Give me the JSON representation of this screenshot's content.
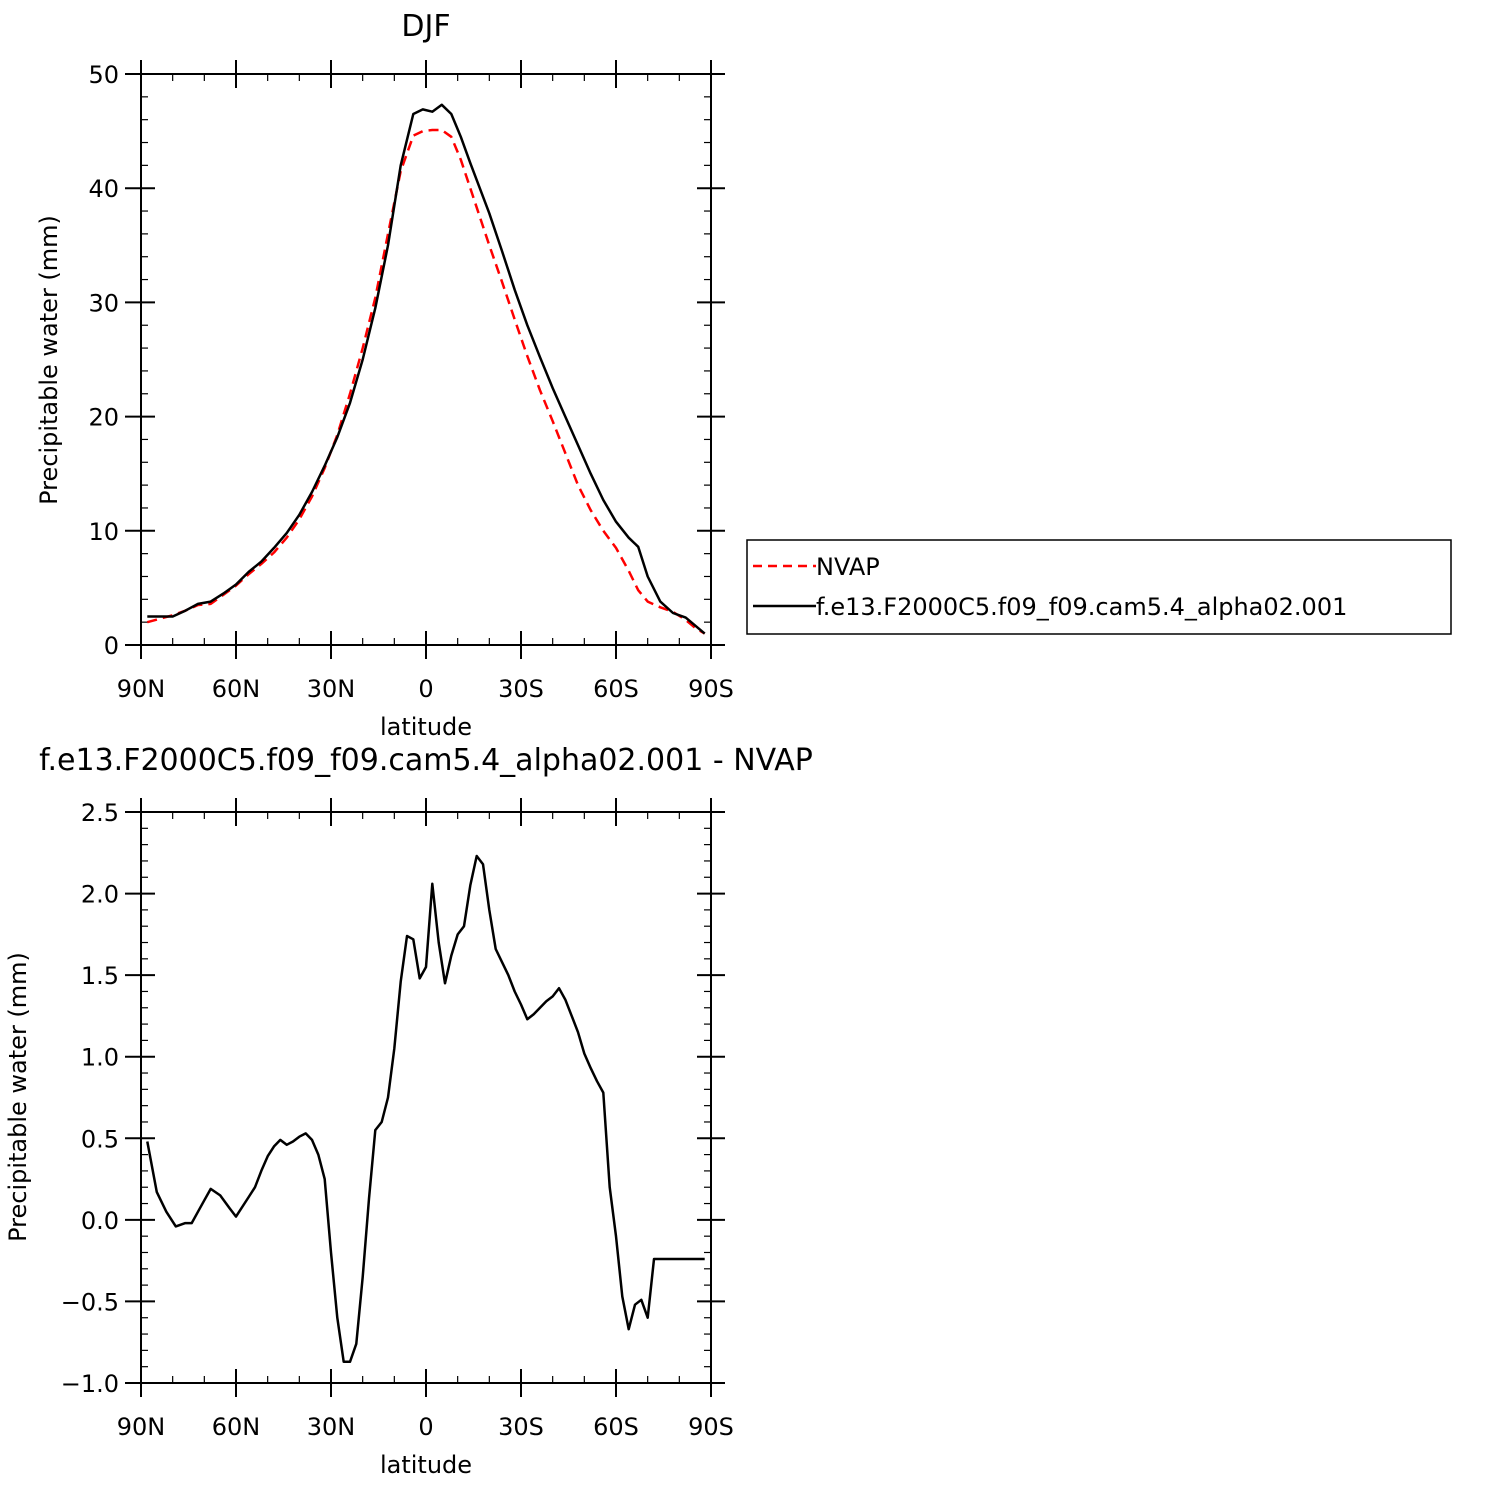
{
  "chart_data": [
    {
      "type": "line",
      "title": "DJF",
      "xlabel": "latitude",
      "ylabel": "Precipitable water (mm)",
      "xlim": [
        -90,
        90
      ],
      "ylim": [
        0,
        50
      ],
      "x_ticks": [
        -90,
        -60,
        -30,
        0,
        30,
        60,
        90
      ],
      "x_tick_labels": [
        "90N",
        "60N",
        "30N",
        "0",
        "30S",
        "60S",
        "90S"
      ],
      "y_ticks": [
        0,
        10,
        20,
        30,
        40,
        50
      ],
      "y_tick_labels": [
        "0",
        "10",
        "20",
        "30",
        "40",
        "50"
      ],
      "grid": false,
      "legend": {
        "placement": "right",
        "entries": [
          "NVAP",
          "f.e13.F2000C5.f09_f09.cam5.4_alpha02.001"
        ]
      },
      "series": [
        {
          "name": "NVAP",
          "color": "#ff0000",
          "dash": "dashed",
          "x": [
            -88,
            -84,
            -80,
            -76,
            -72,
            -68,
            -64,
            -60,
            -56,
            -52,
            -48,
            -44,
            -40,
            -36,
            -32,
            -28,
            -24,
            -20,
            -16,
            -12,
            -8,
            -4,
            -1,
            2,
            5,
            8,
            11,
            14,
            17,
            20,
            24,
            28,
            32,
            36,
            40,
            44,
            48,
            52,
            56,
            60,
            64,
            67,
            70,
            74,
            78,
            82,
            85,
            88
          ],
          "y": [
            2.0,
            2.3,
            2.6,
            3.0,
            3.5,
            3.6,
            4.4,
            5.2,
            6.2,
            7.1,
            8.1,
            9.4,
            11.0,
            13.0,
            15.5,
            18.4,
            22.0,
            26.0,
            30.4,
            36.0,
            41.5,
            44.6,
            45.0,
            45.1,
            45.1,
            44.5,
            42.5,
            40.0,
            37.5,
            35.0,
            31.8,
            28.5,
            25.3,
            22.3,
            19.6,
            16.8,
            14.0,
            11.8,
            10.0,
            8.5,
            6.5,
            4.8,
            3.8,
            3.3,
            2.9,
            2.2,
            1.5,
            1.0
          ]
        },
        {
          "name": "f.e13.F2000C5.f09_f09.cam5.4_alpha02.001",
          "color": "#000000",
          "dash": "solid",
          "x": [
            -88,
            -84,
            -80,
            -76,
            -72,
            -68,
            -64,
            -60,
            -56,
            -52,
            -48,
            -44,
            -40,
            -36,
            -32,
            -28,
            -24,
            -20,
            -16,
            -12,
            -8,
            -4,
            -1,
            2,
            5,
            8,
            11,
            14,
            17,
            20,
            24,
            28,
            32,
            36,
            40,
            44,
            48,
            52,
            56,
            60,
            64,
            67,
            70,
            74,
            78,
            82,
            85,
            88
          ],
          "y": [
            2.5,
            2.5,
            2.5,
            3.0,
            3.6,
            3.8,
            4.5,
            5.3,
            6.4,
            7.3,
            8.5,
            9.8,
            11.4,
            13.4,
            15.7,
            18.2,
            21.2,
            25.0,
            29.5,
            35.0,
            42.0,
            46.5,
            46.9,
            46.7,
            47.3,
            46.5,
            44.5,
            42.2,
            40.0,
            37.8,
            34.5,
            31.1,
            28.0,
            25.2,
            22.5,
            20.0,
            17.5,
            15.0,
            12.7,
            10.8,
            9.4,
            8.6,
            6.0,
            3.8,
            2.8,
            2.4,
            1.7,
            1.0
          ]
        }
      ]
    },
    {
      "type": "line",
      "title": "f.e13.F2000C5.f09_f09.cam5.4_alpha02.001 - NVAP",
      "xlabel": "latitude",
      "ylabel": "Precipitable water (mm)",
      "xlim": [
        -90,
        90
      ],
      "ylim": [
        -1.0,
        2.5
      ],
      "x_ticks": [
        -90,
        -60,
        -30,
        0,
        30,
        60,
        90
      ],
      "x_tick_labels": [
        "90N",
        "60N",
        "30N",
        "0",
        "30S",
        "60S",
        "90S"
      ],
      "y_ticks": [
        -1.0,
        -0.5,
        0.0,
        0.5,
        1.0,
        1.5,
        2.0,
        2.5
      ],
      "y_tick_labels": [
        "−1.0",
        "−0.5",
        "0.0",
        "0.5",
        "1.0",
        "1.5",
        "2.0",
        "2.5"
      ],
      "grid": false,
      "series": [
        {
          "color": "#000000",
          "dash": "solid",
          "x": [
            -88,
            -85,
            -82,
            -79,
            -76,
            -74,
            -72,
            -70,
            -68,
            -65,
            -62,
            -60,
            -56,
            -54,
            -52,
            -50,
            -48,
            -46,
            -44,
            -42,
            -40,
            -38,
            -36,
            -34,
            -32,
            -30,
            -28,
            -26,
            -24,
            -22,
            -20,
            -18,
            -16,
            -14,
            -12,
            -10,
            -8,
            -6,
            -4,
            -2,
            0,
            2,
            4,
            6,
            8,
            10,
            12,
            14,
            16,
            18,
            20,
            22,
            24,
            26,
            28,
            30,
            32,
            34,
            36,
            38,
            40,
            42,
            44,
            46,
            48,
            50,
            52,
            54,
            56,
            58,
            60,
            62,
            64,
            66,
            68,
            70,
            72,
            74,
            76,
            78,
            80,
            82,
            84,
            86,
            88
          ],
          "y": [
            0.48,
            0.17,
            0.05,
            -0.04,
            -0.02,
            -0.02,
            0.05,
            0.12,
            0.19,
            0.15,
            0.07,
            0.02,
            0.14,
            0.2,
            0.3,
            0.39,
            0.45,
            0.49,
            0.46,
            0.48,
            0.51,
            0.53,
            0.49,
            0.4,
            0.25,
            -0.2,
            -0.6,
            -0.87,
            -0.87,
            -0.76,
            -0.35,
            0.13,
            0.55,
            0.6,
            0.75,
            1.05,
            1.46,
            1.74,
            1.72,
            1.48,
            1.55,
            2.06,
            1.7,
            1.45,
            1.62,
            1.75,
            1.8,
            2.05,
            2.23,
            2.18,
            1.9,
            1.66,
            1.58,
            1.5,
            1.4,
            1.32,
            1.23,
            1.26,
            1.3,
            1.34,
            1.37,
            1.42,
            1.35,
            1.25,
            1.15,
            1.02,
            0.93,
            0.85,
            0.78,
            0.2,
            -0.1,
            -0.47,
            -0.67,
            -0.52,
            -0.49,
            -0.6,
            -0.24,
            -0.24,
            -0.24,
            -0.24,
            -0.24,
            -0.24,
            -0.24,
            -0.24,
            -0.24
          ]
        }
      ]
    }
  ]
}
